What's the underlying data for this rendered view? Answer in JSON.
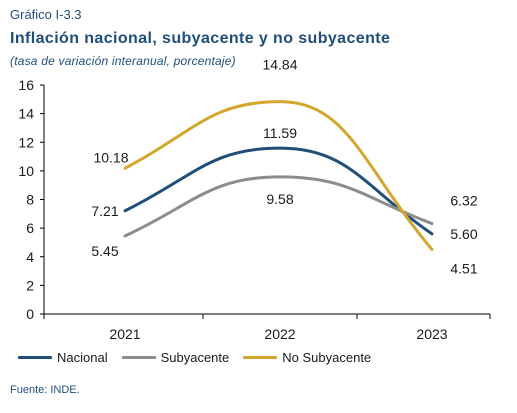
{
  "header": {
    "kicker": "Gráfico I-3.3",
    "title": "Inflación nacional, subyacente y no subyacente",
    "subtitle": "(tasa de variación interanual, porcentaje)"
  },
  "footer": {
    "source": "Fuente: INDE."
  },
  "chart_data": {
    "type": "line",
    "x": [
      "2021",
      "2022",
      "2023"
    ],
    "ylim": [
      0,
      16
    ],
    "yticks": [
      "0",
      "2",
      "4",
      "6",
      "8",
      "10",
      "12",
      "14",
      "16"
    ],
    "grid": false,
    "legend_position": "bottom",
    "series": [
      {
        "name": "Nacional",
        "color": "#1f4e79",
        "values": [
          7.21,
          11.59,
          5.6
        ],
        "labels": [
          "7.21",
          "11.59",
          "5.60"
        ]
      },
      {
        "name": "Subyacente",
        "color": "#8c8c8c",
        "values": [
          5.45,
          9.58,
          6.32
        ],
        "labels": [
          "5.45",
          "9.58",
          "6.32"
        ]
      },
      {
        "name": "No Subyacente",
        "color": "#d4a72c",
        "values": [
          10.18,
          14.84,
          4.51
        ],
        "labels": [
          "10.18",
          "14.84",
          "4.51"
        ]
      }
    ]
  }
}
